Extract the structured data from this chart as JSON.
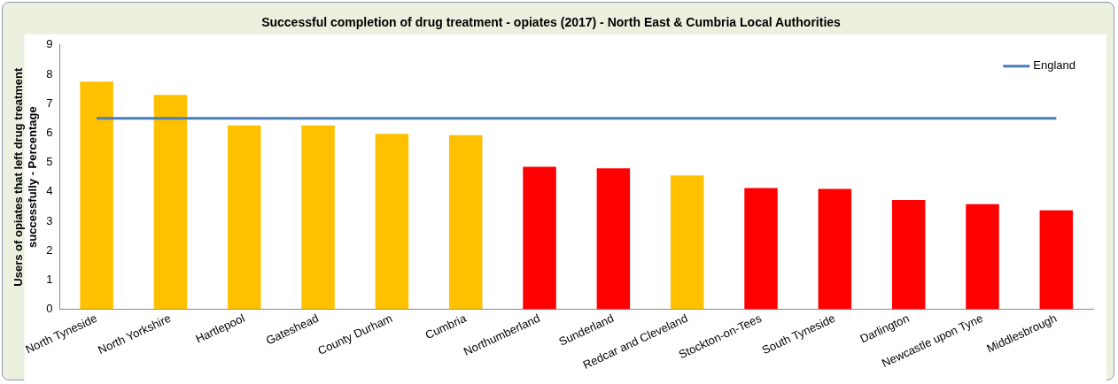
{
  "chart_data": {
    "type": "bar",
    "title": "Successful completion of drug treatment - opiates (2017) - North East & Cumbria Local Authorities",
    "ylabel": "Users of opiates that left drug treatment successfully - Percentage",
    "categories": [
      "North Tyneside",
      "North Yorkshire",
      "Hartlepool",
      "Gateshead",
      "County Durham",
      "Cumbria",
      "Northumberland",
      "Sunderland",
      "Redcar and Cleveland",
      "Stockton-on-Tees",
      "South Tyneside",
      "Darlington",
      "Newcastle upon Tyne",
      "Middlesbrough"
    ],
    "series": [
      {
        "values": [
          7.75,
          7.3,
          6.26,
          6.26,
          5.97,
          5.93,
          4.85,
          4.8,
          4.56,
          4.13,
          4.1,
          3.72,
          3.58,
          3.37
        ],
        "colors": [
          "#ffc000",
          "#ffc000",
          "#ffc000",
          "#ffc000",
          "#ffc000",
          "#ffc000",
          "#ff0000",
          "#ff0000",
          "#ffc000",
          "#ff0000",
          "#ff0000",
          "#ff0000",
          "#ff0000",
          "#ff0000"
        ]
      },
      {
        "type": "line",
        "name": "England",
        "color": "#4a7ebb",
        "values": [
          6.5,
          6.5,
          6.5,
          6.5,
          6.5,
          6.5,
          6.5,
          6.5,
          6.5,
          6.5,
          6.5,
          6.5,
          6.5,
          6.5
        ]
      }
    ],
    "ylim": [
      0,
      9
    ],
    "yticks": [
      0,
      1,
      2,
      3,
      4,
      5,
      6,
      7,
      8,
      9
    ],
    "grid": false,
    "legend": "top right",
    "marker": "none"
  }
}
